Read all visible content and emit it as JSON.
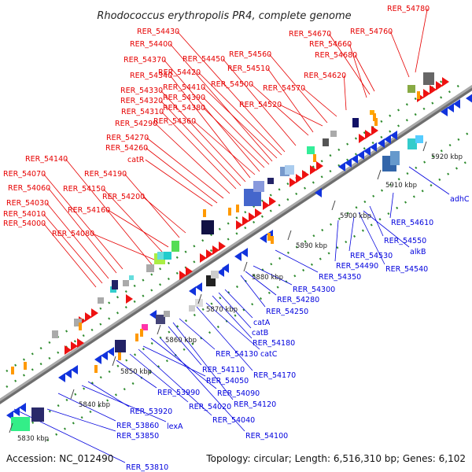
{
  "title": "Rhodococcus erythropolis PR4, complete genome",
  "accession": "Accession: NC_012490",
  "topology": "Topology: circular; Length: 6,516,310 bp; Genes: 6,102",
  "colors": {
    "forward_label": "#e60000",
    "reverse_label": "#0000dd",
    "forward_arrow": "#ee1111",
    "reverse_arrow": "#1133dd",
    "backbone": "#888888",
    "dots": "#2e8b2e"
  },
  "scale_ticks": [
    "5830 kbp",
    "5840 kbp",
    "5850 kbp",
    "5860 kbp",
    "5870 kbp",
    "5880 kbp",
    "5890 kbp",
    "5900 kbp",
    "5910 kbp",
    "5920 kbp"
  ],
  "forward_genes": [
    "RER_54000",
    "RER_54010",
    "RER_54030",
    "RER_54060",
    "RER_54070",
    "RER_54080",
    "RER_54140",
    "RER_54150",
    "RER_54160",
    "RER_54190",
    "RER_54200",
    "catR",
    "RER_54260",
    "RER_54270",
    "RER_54290",
    "RER_54310",
    "RER_54320",
    "RER_54330",
    "RER_54340",
    "RER_54360",
    "RER_54370",
    "RER_54380",
    "RER_54390",
    "RER_54400",
    "RER_54410",
    "RER_54420",
    "RER_54430",
    "RER_54450",
    "RER_54500",
    "RER_54510",
    "RER_54520",
    "RER_54560",
    "RER_54570",
    "RER_54620",
    "RER_54660",
    "RER_54670",
    "RER_54680",
    "RER_54760",
    "RER_54780"
  ],
  "reverse_genes": [
    "RER_53810",
    "RER_53850",
    "RER_53860",
    "lexA",
    "RER_53920",
    "RER_53990",
    "RER_54020",
    "RER_54040",
    "RER_54050",
    "RER_54090",
    "RER_54100",
    "RER_54110",
    "RER_54120",
    "RER_54130",
    "RER_54170",
    "catC",
    "RER_54180",
    "catB",
    "catA",
    "RER_54250",
    "RER_54280",
    "RER_54300",
    "RER_54350",
    "RER_54490",
    "RER_54530",
    "RER_54540",
    "alkB",
    "RER_54550",
    "RER_54610",
    "adhC"
  ]
}
